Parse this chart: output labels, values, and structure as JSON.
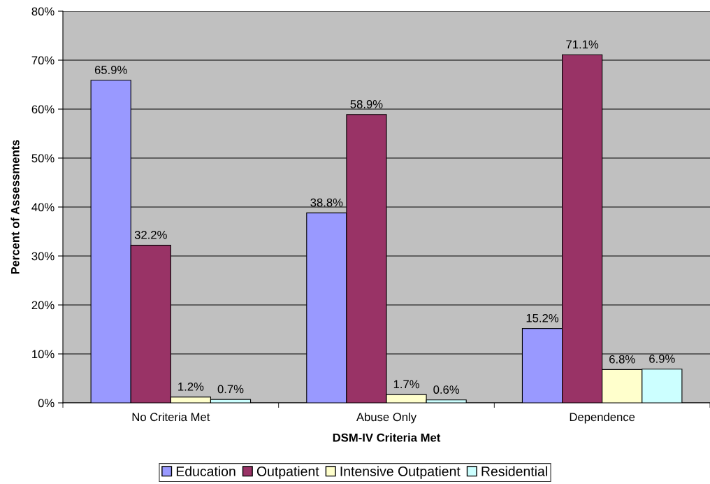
{
  "chart_data": {
    "type": "bar",
    "xlabel": "DSM-IV Criteria Met",
    "ylabel": "Percent of Assessments",
    "categories": [
      "No Criteria Met",
      "Abuse Only",
      "Dependence"
    ],
    "series": [
      {
        "name": "Education",
        "color": "#9999ff",
        "values": [
          65.9,
          38.8,
          15.2
        ],
        "value_labels": [
          "65.9%",
          "38.8%",
          "15.2%"
        ]
      },
      {
        "name": "Outpatient",
        "color": "#993366",
        "values": [
          32.2,
          58.9,
          71.1
        ],
        "value_labels": [
          "32.2%",
          "58.9%",
          "71.1%"
        ]
      },
      {
        "name": "Intensive Outpatient",
        "color": "#ffffcc",
        "values": [
          1.2,
          1.7,
          6.8
        ],
        "value_labels": [
          "1.2%",
          "1.7%",
          "6.8%"
        ]
      },
      {
        "name": "Residential",
        "color": "#ccffff",
        "values": [
          0.7,
          0.6,
          6.9
        ],
        "value_labels": [
          "0.7%",
          "0.6%",
          "6.9%"
        ]
      }
    ],
    "ylim": [
      0,
      80
    ],
    "yticks": [
      {
        "value": 0,
        "label": "0%"
      },
      {
        "value": 10,
        "label": "10%"
      },
      {
        "value": 20,
        "label": "20%"
      },
      {
        "value": 30,
        "label": "30%"
      },
      {
        "value": 40,
        "label": "40%"
      },
      {
        "value": 50,
        "label": "50%"
      },
      {
        "value": 60,
        "label": "60%"
      },
      {
        "value": 70,
        "label": "70%"
      },
      {
        "value": 80,
        "label": "80%"
      }
    ],
    "grid": "y",
    "legend": "bottom"
  }
}
